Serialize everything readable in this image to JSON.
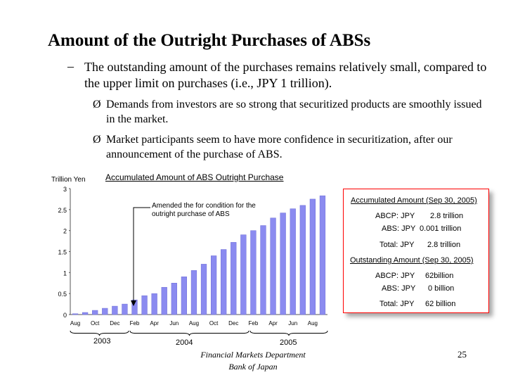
{
  "slide": {
    "title": "Amount of the Outright Purchases of ABSs",
    "dash": "–",
    "subtitle": "The outstanding amount of the purchases remains relatively small, compared to the upper limit on purchases (i.e., JPY 1 trillion).",
    "bullet_marker": "Ø",
    "bullets": [
      "Demands from investors are so strong that securitized products are smoothly issued in the market.",
      "Market participants seem to have more confidence in securitization, after our announcement of the purchase of ABS."
    ],
    "footer_line1": "Financial Markets Department",
    "footer_line2": "Bank of Japan",
    "page_number": "25"
  },
  "chart_data": {
    "type": "bar",
    "title": "Accumulated Amount of ABS Outright Purchase",
    "ylabel": "Trillion Yen",
    "ylim": [
      0,
      3
    ],
    "yticks": [
      "3",
      "2.5",
      "2",
      "1.5",
      "1",
      "0.5",
      "0"
    ],
    "bar_color": "#8b8bf0",
    "categories": [
      "Aug",
      "",
      "Oct",
      "",
      "Dec",
      "",
      "Feb",
      "",
      "Apr",
      "",
      "Jun",
      "",
      "Aug",
      "",
      "Oct",
      "",
      "Dec",
      "",
      "Feb",
      "",
      "Apr",
      "",
      "Jun",
      "",
      "Aug",
      ""
    ],
    "values": [
      0.02,
      0.05,
      0.1,
      0.15,
      0.2,
      0.25,
      0.35,
      0.45,
      0.5,
      0.65,
      0.75,
      0.9,
      1.05,
      1.2,
      1.4,
      1.55,
      1.72,
      1.9,
      2.0,
      2.12,
      2.3,
      2.42,
      2.52,
      2.6,
      2.75,
      2.83
    ],
    "years": [
      "2003",
      "2004",
      "2005"
    ],
    "annotation": "Amended the for condition for the outright purchase of ABS",
    "info": {
      "acc_title": "Accumulated Amount (Sep 30, 2005)",
      "abcp_label": "ABCP: JPY",
      "abcp_value": "2.8 trillion",
      "abs_label": "ABS: JPY",
      "abs_value": "0.001 trillion",
      "total_label": "Total: JPY",
      "total_value": "2.8 trillion",
      "out_title": "Outstanding Amount (Sep 30, 2005)",
      "out_abcp_label": "ABCP: JPY",
      "out_abcp_value": "62billion",
      "out_abs_label": "ABS: JPY",
      "out_abs_value": "0 billion",
      "out_total_label": "Total: JPY",
      "out_total_value": "62 billion"
    }
  }
}
